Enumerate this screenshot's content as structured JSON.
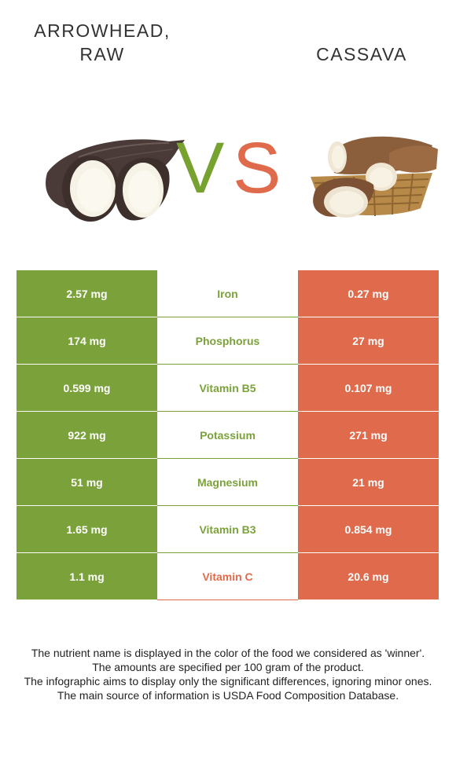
{
  "header": {
    "left_title": "ARROWHEAD, RAW",
    "right_title": "CASSAVA",
    "vs_v": "V",
    "vs_s": "S"
  },
  "colors": {
    "left_winner": "#7ba23a",
    "right_winner": "#e06a4c"
  },
  "images": {
    "left_icon": "arrowhead-root-image",
    "right_icon": "cassava-basket-image"
  },
  "rows": [
    {
      "left": "2.57 mg",
      "nutrient": "Iron",
      "right": "0.27 mg",
      "winner": "left"
    },
    {
      "left": "174 mg",
      "nutrient": "Phosphorus",
      "right": "27 mg",
      "winner": "left"
    },
    {
      "left": "0.599 mg",
      "nutrient": "Vitamin B5",
      "right": "0.107 mg",
      "winner": "left"
    },
    {
      "left": "922 mg",
      "nutrient": "Potassium",
      "right": "271 mg",
      "winner": "left"
    },
    {
      "left": "51 mg",
      "nutrient": "Magnesium",
      "right": "21 mg",
      "winner": "left"
    },
    {
      "left": "1.65 mg",
      "nutrient": "Vitamin B3",
      "right": "0.854 mg",
      "winner": "left"
    },
    {
      "left": "1.1 mg",
      "nutrient": "Vitamin C",
      "right": "20.6 mg",
      "winner": "right"
    }
  ],
  "footnotes": [
    "The nutrient name is displayed in the color of the food we considered as 'winner'.",
    "The amounts are specified per 100 gram of the product.",
    "The infographic aims to display only the significant differences, ignoring minor ones.",
    "The main source of information is USDA Food Composition Database."
  ]
}
